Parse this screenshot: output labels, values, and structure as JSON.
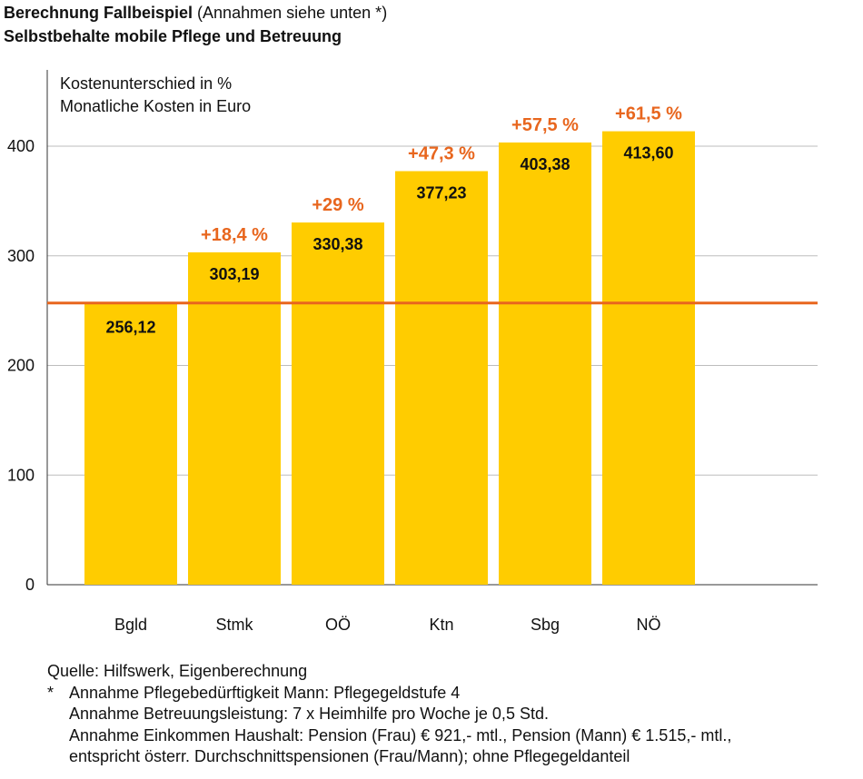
{
  "header": {
    "title_bold": "Berechnung Fallbeispiel",
    "title_rest": " (Annahmen siehe unten *)",
    "subtitle": "Selbstbehalte mobile Pflege und Betreuung"
  },
  "chart_data": {
    "type": "bar",
    "legend_lines": [
      "Kostenunterschied in %",
      "Monatliche Kosten in Euro"
    ],
    "categories": [
      "Bgld",
      "Stmk",
      "OÖ",
      "Ktn",
      "Sbg",
      "NÖ"
    ],
    "values": [
      256.12,
      303.19,
      330.38,
      377.23,
      403.38,
      413.6
    ],
    "value_labels": [
      "256,12",
      "303,19",
      "330,38",
      "377,23",
      "403,38",
      "413,60"
    ],
    "percent_labels": [
      "",
      "+18,4 %",
      "+29 %",
      "+47,3 %",
      "+57,5 %",
      "+61,5 %"
    ],
    "reference_line": 256.12,
    "ylim": [
      0,
      420
    ],
    "yticks": [
      0,
      100,
      200,
      300,
      400
    ],
    "grid": true,
    "xlabel": "",
    "ylabel": "",
    "colors": {
      "bar": "#FFCC00",
      "percent": "#E8661E",
      "reference": "#E8661E",
      "grid": "#BDBDBD"
    }
  },
  "footer": {
    "source": "Quelle: Hilfswerk, Eigenberechnung",
    "star": "*",
    "notes": [
      "Annahme Pflegebedürftigkeit Mann: Pflegegeldstufe 4",
      "Annahme Betreuungsleistung: 7 x Heimhilfe pro Woche je 0,5 Std.",
      "Annahme Einkommen Haushalt: Pension (Frau) € 921,- mtl., Pension (Mann) € 1.515,- mtl.,",
      "entspricht österr. Durchschnittspensionen (Frau/Mann); ohne Pflegegeldanteil"
    ]
  }
}
